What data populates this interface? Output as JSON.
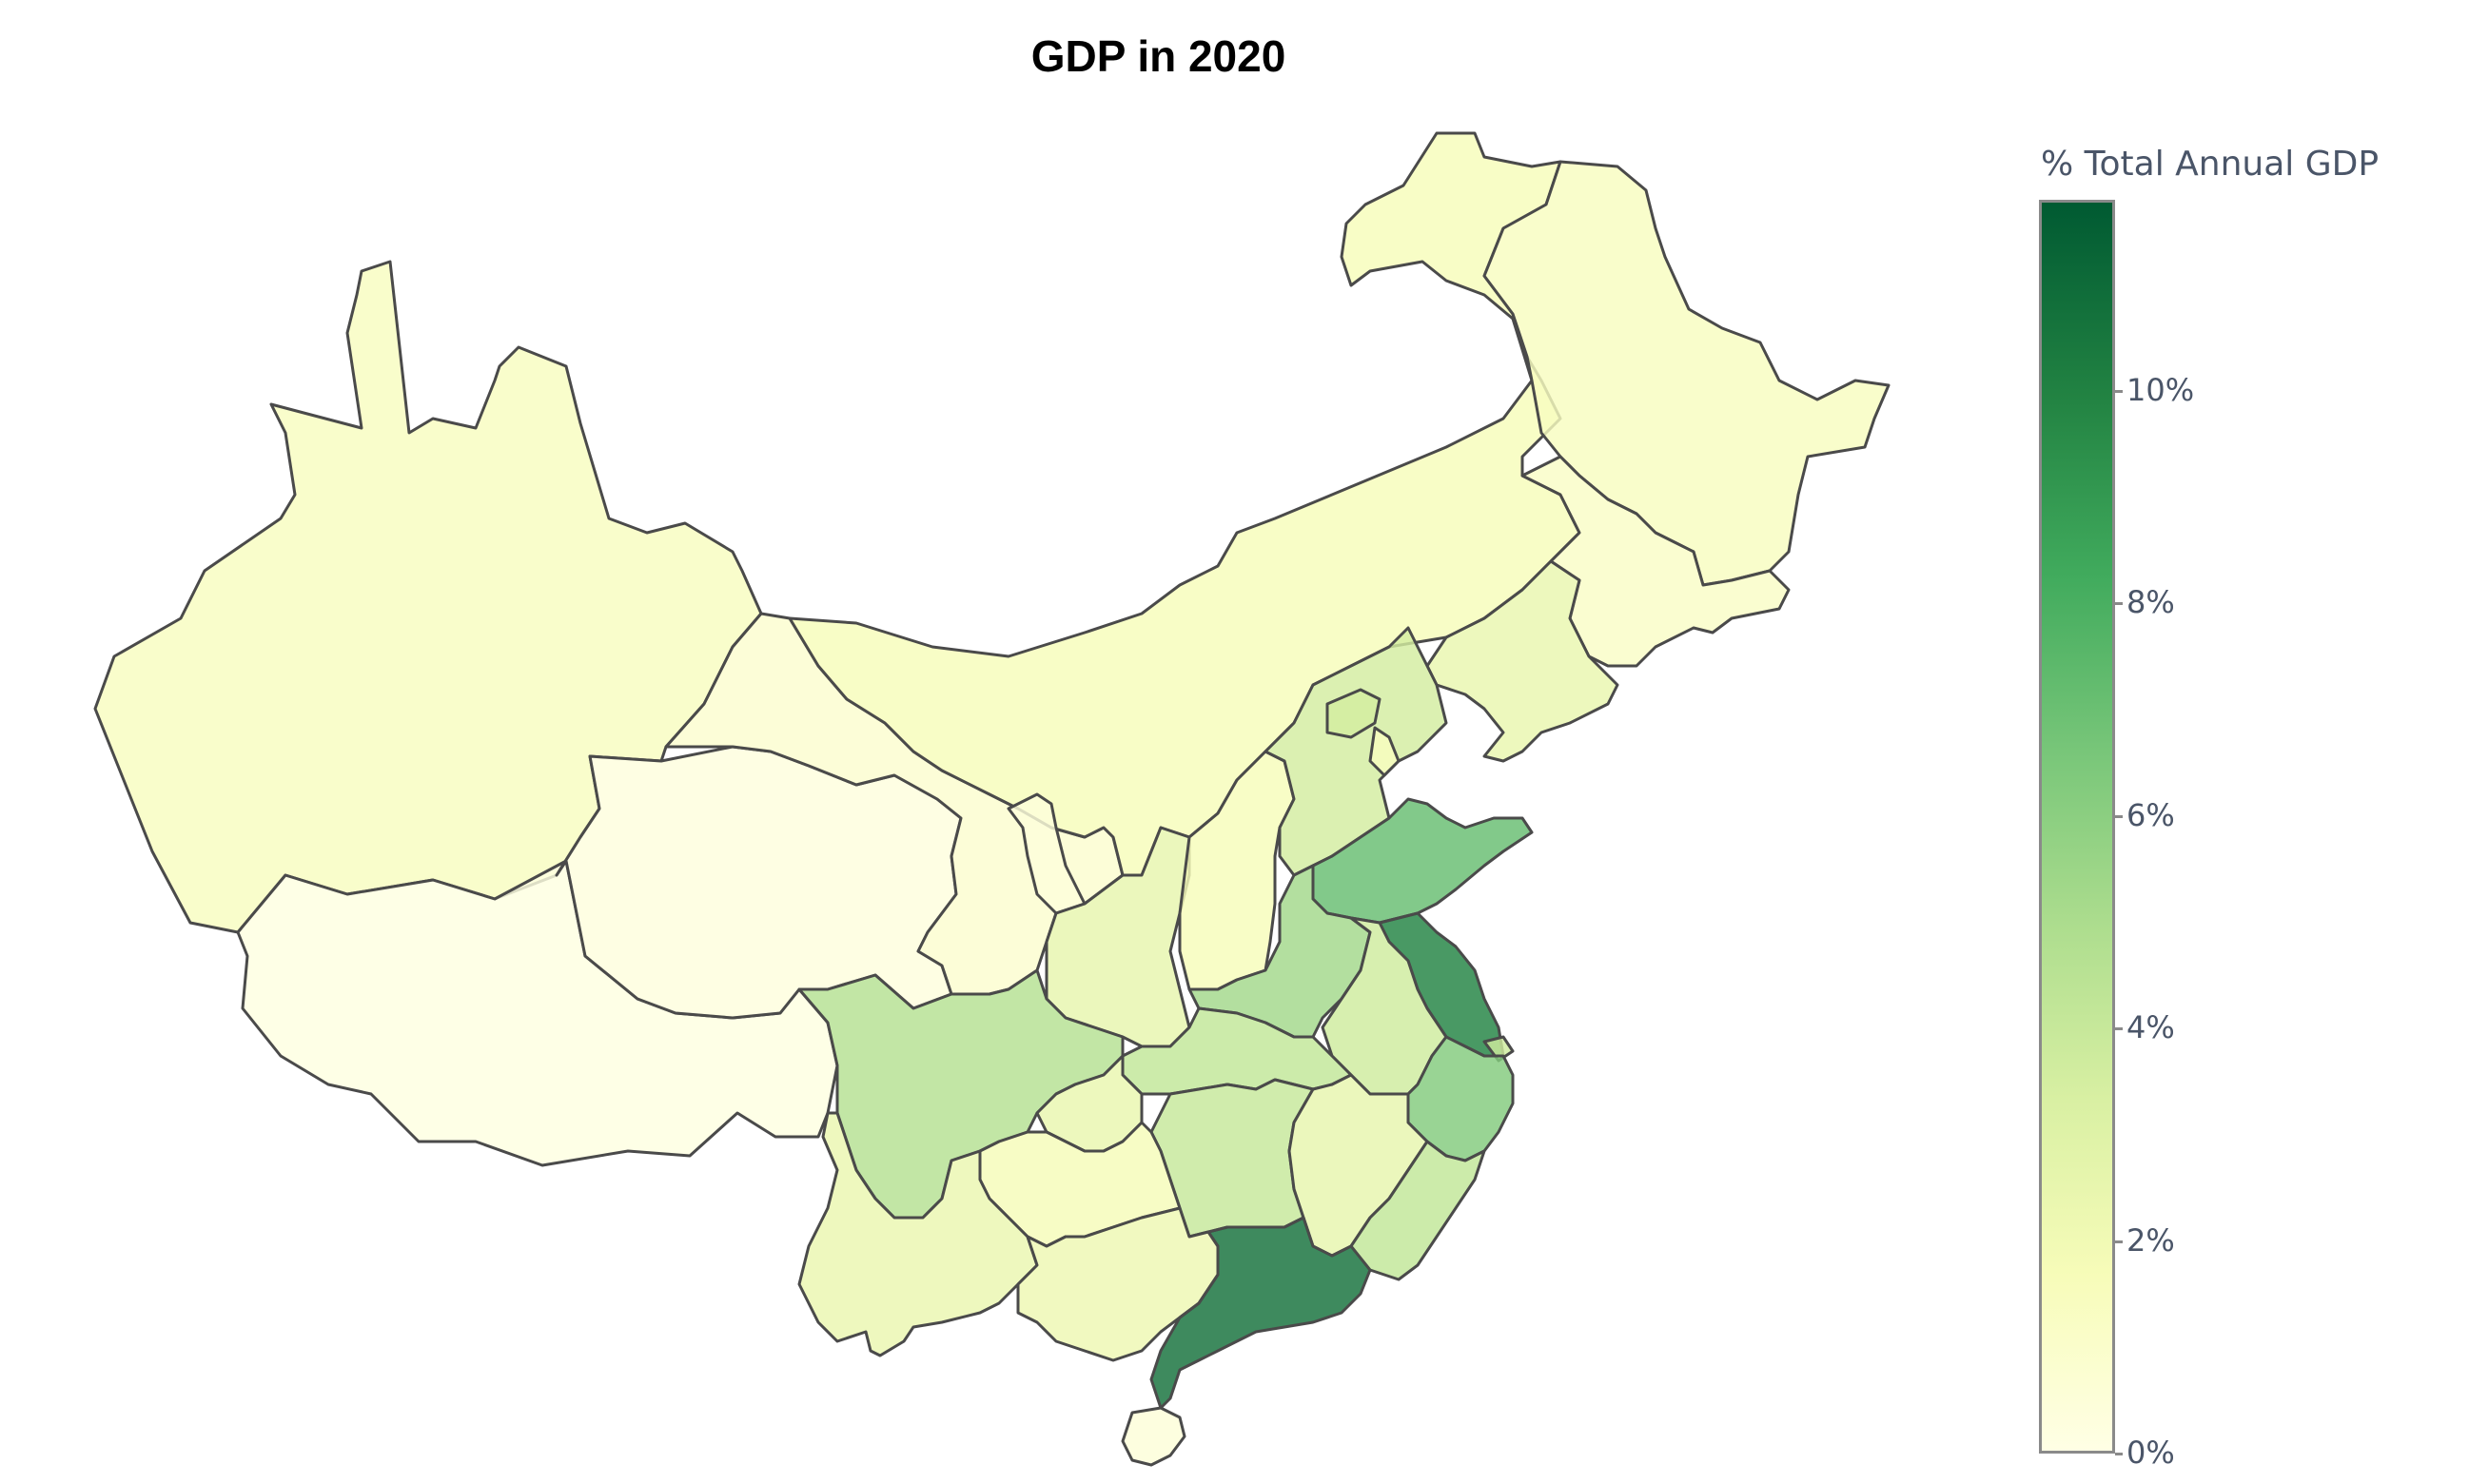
{
  "title": "GDP in 2020",
  "colorbar": {
    "title": "% Total Annual GDP",
    "ticks": [
      "0%",
      "2%",
      "4%",
      "6%",
      "8%",
      "10%"
    ],
    "tick_values": [
      0,
      2,
      4,
      6,
      8,
      10
    ],
    "range": [
      0,
      11.8
    ],
    "colors": [
      "#ffffe5",
      "#f7fcb9",
      "#d9f0a3",
      "#addd8e",
      "#78c679",
      "#41ab5d",
      "#238443",
      "#005a32"
    ]
  },
  "chart_data": {
    "type": "choropleth",
    "title": "GDP in 2020",
    "colorbar_title": "% Total Annual GDP",
    "range": [
      0,
      11.8
    ],
    "regions": [
      {
        "id": "xinjiang",
        "value": 1.4
      },
      {
        "id": "tibet",
        "value": 0.2
      },
      {
        "id": "qinghai",
        "value": 0.3
      },
      {
        "id": "gansu",
        "value": 0.9
      },
      {
        "id": "inner-mongolia",
        "value": 1.7
      },
      {
        "id": "heilongjiang",
        "value": 1.4
      },
      {
        "id": "jilin",
        "value": 1.2
      },
      {
        "id": "liaoning",
        "value": 2.5
      },
      {
        "id": "ningxia",
        "value": 0.4
      },
      {
        "id": "shaanxi",
        "value": 2.6
      },
      {
        "id": "shanxi",
        "value": 1.7
      },
      {
        "id": "hebei",
        "value": 3.6
      },
      {
        "id": "beijing",
        "value": 3.6
      },
      {
        "id": "tianjin",
        "value": 1.4
      },
      {
        "id": "shandong",
        "value": 7.3
      },
      {
        "id": "henan",
        "value": 5.4
      },
      {
        "id": "jiangsu",
        "value": 10.2
      },
      {
        "id": "shanghai",
        "value": 3.8
      },
      {
        "id": "anhui",
        "value": 3.8
      },
      {
        "id": "hubei",
        "value": 4.3
      },
      {
        "id": "sichuan",
        "value": 4.8
      },
      {
        "id": "chongqing",
        "value": 2.5
      },
      {
        "id": "zhejiang",
        "value": 6.4
      },
      {
        "id": "hunan",
        "value": 4.1
      },
      {
        "id": "jiangxi",
        "value": 2.6
      },
      {
        "id": "fujian",
        "value": 4.3
      },
      {
        "id": "guizhou",
        "value": 1.8
      },
      {
        "id": "yunnan",
        "value": 2.4
      },
      {
        "id": "guangxi",
        "value": 2.2
      },
      {
        "id": "guangdong",
        "value": 10.9
      },
      {
        "id": "hainan",
        "value": 0.5
      }
    ]
  }
}
